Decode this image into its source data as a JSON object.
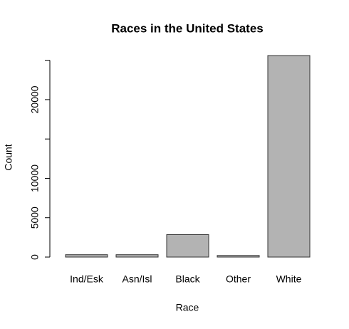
{
  "chart_data": {
    "type": "bar",
    "title": "Races in the United States",
    "xlabel": "Race",
    "ylabel": "Count",
    "categories": [
      "Ind/Esk",
      "Asn/Isl",
      "Black",
      "Other",
      "White"
    ],
    "values": [
      300,
      300,
      2850,
      200,
      25600
    ],
    "color": "#b3b3b3",
    "ylim": [
      0,
      25600
    ],
    "yticks": [
      0,
      5000,
      10000,
      20000
    ],
    "yticks_unlabeled": [
      15000,
      25000
    ],
    "grid": false
  }
}
